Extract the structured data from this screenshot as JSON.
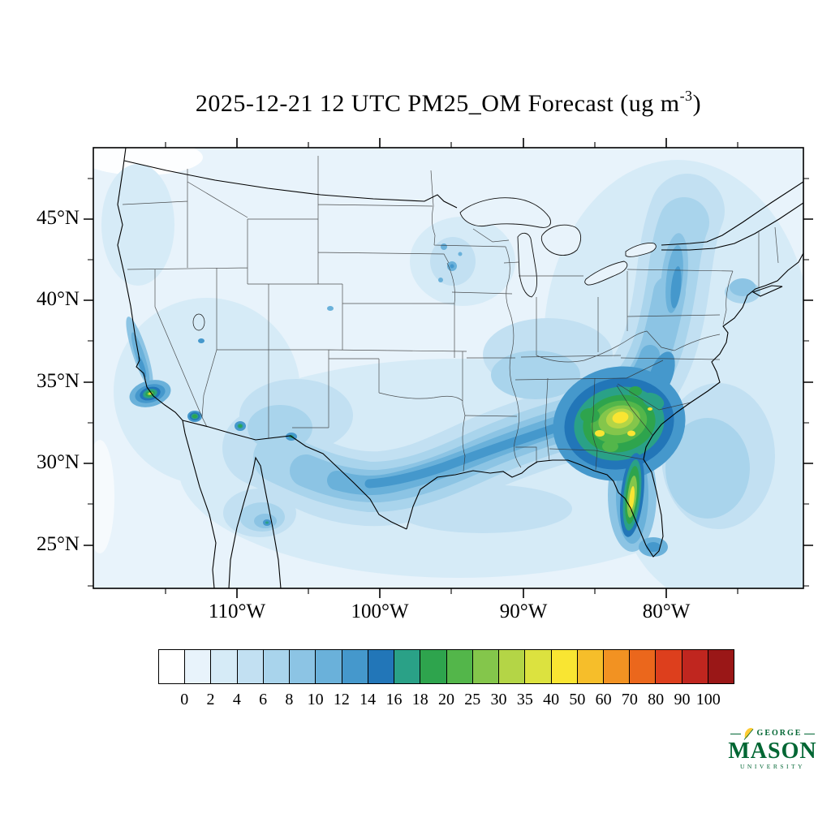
{
  "title": {
    "prefix": "2025-12-21 12 UTC PM25_OM Forecast (ug m",
    "exponent": "-3",
    "suffix": ")"
  },
  "axes": {
    "lat_labels": [
      "45°N",
      "40°N",
      "35°N",
      "30°N",
      "25°N"
    ],
    "lon_labels": [
      "110°W",
      "100°W",
      "90°W",
      "80°W"
    ]
  },
  "colorbar": {
    "tick_labels": [
      "0",
      "2",
      "4",
      "6",
      "8",
      "10",
      "12",
      "14",
      "16",
      "18",
      "20",
      "25",
      "30",
      "35",
      "40",
      "50",
      "60",
      "70",
      "80",
      "90",
      "100"
    ],
    "colors": [
      "#FFFFFF",
      "#E8F3FB",
      "#D6EBF7",
      "#C2E0F2",
      "#A9D4EC",
      "#8CC4E4",
      "#6AB1DA",
      "#4598CC",
      "#2276B8",
      "#2AA187",
      "#2EA44D",
      "#53B64A",
      "#84C64B",
      "#B4D546",
      "#DCE23F",
      "#F9E532",
      "#F6BE2A",
      "#F29222",
      "#EB671C",
      "#DD3F1D",
      "#C0261F",
      "#9A1717"
    ]
  },
  "logo": {
    "top": "GEORGE",
    "name": "MASON",
    "bottom": "UNIVERSITY",
    "green": "#006633",
    "gold": "#FFCC33"
  },
  "chart_data": {
    "type": "heatmap",
    "title": "2025-12-21 12 UTC PM25_OM Forecast (ug m-3)",
    "variable": "PM25_OM",
    "units": "ug m-3",
    "valid_time": "2025-12-21 12 UTC",
    "region": "Continental United States with portions of Canada and Mexico",
    "x_tick_labels": [
      "110°W",
      "100°W",
      "90°W",
      "80°W"
    ],
    "y_tick_labels": [
      "45°N",
      "40°N",
      "35°N",
      "30°N",
      "25°N"
    ],
    "approx_lon_range_deg_west": [
      121,
      71
    ],
    "approx_lat_range_deg_north": [
      22.5,
      49.5
    ],
    "contour_levels": [
      0,
      2,
      4,
      6,
      8,
      10,
      12,
      14,
      16,
      18,
      20,
      25,
      30,
      35,
      40,
      50,
      60,
      70,
      80,
      90,
      100
    ],
    "palette": [
      "#FFFFFF",
      "#E8F3FB",
      "#D6EBF7",
      "#C2E0F2",
      "#A9D4EC",
      "#8CC4E4",
      "#6AB1DA",
      "#4598CC",
      "#2276B8",
      "#2AA187",
      "#2EA44D",
      "#53B64A",
      "#84C64B",
      "#B4D546",
      "#DCE23F",
      "#F9E532",
      "#F6BE2A",
      "#F29222",
      "#EB671C",
      "#DD3F1D",
      "#C0261F",
      "#9A1717"
    ],
    "legend_position": "bottom",
    "grid": false,
    "observed_features": [
      {
        "area": "Central Georgia into western South Carolina",
        "approx_value_ug_m3": "25-50",
        "note": "domain maximum, green-yellow core"
      },
      {
        "area": "Central Florida peninsula corridor",
        "approx_value_ug_m3": "18-50",
        "note": "narrow north-south plume"
      },
      {
        "area": "Arc from south Texas across Louisiana, Mississippi, Alabama into the Carolinas",
        "approx_value_ug_m3": "6-14"
      },
      {
        "area": "Appalachians / Mid-Atlantic / New England corridor",
        "approx_value_ug_m3": "4-12"
      },
      {
        "area": "Los Angeles basin, Southern California",
        "approx_value_ug_m3": "12-50",
        "note": "compact hotspot"
      },
      {
        "area": "Arizona-Mexico border spots and El Paso area",
        "approx_value_ug_m3": "12-20"
      },
      {
        "area": "California Central Valley",
        "approx_value_ug_m3": "8-16"
      },
      {
        "area": "Scattered specks over Minnesota",
        "approx_value_ug_m3": "8-14"
      },
      {
        "area": "Northern Mexico interior patches",
        "approx_value_ug_m3": "4-14"
      },
      {
        "area": "Background over most of CONUS, Canada and oceans",
        "approx_value_ug_m3": "0-4"
      }
    ]
  }
}
